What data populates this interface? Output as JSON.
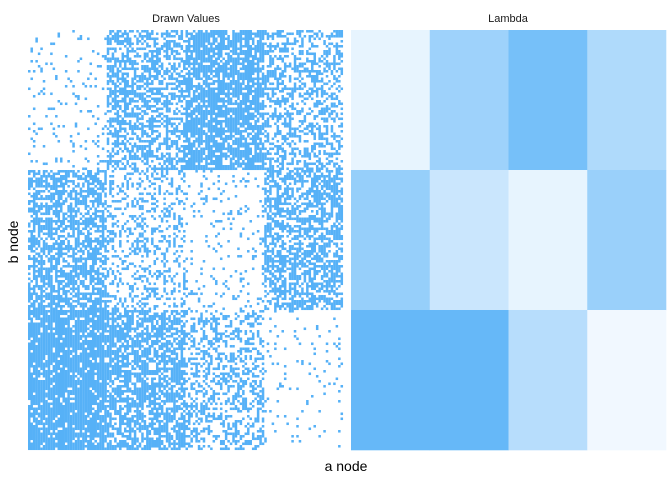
{
  "chart_data": [
    {
      "type": "heatmap",
      "title": "Drawn Values",
      "xlabel": "a node",
      "ylabel": "b node",
      "n_cols": 128,
      "n_rows": 168,
      "value_domain": [
        0,
        1
      ],
      "block_col_edges": [
        0,
        32,
        64,
        96,
        128
      ],
      "block_row_edges": [
        0,
        56,
        112,
        168
      ],
      "block_fill_probability": [
        [
          0.08,
          0.55,
          0.8,
          0.45
        ],
        [
          0.65,
          0.3,
          0.1,
          0.6
        ],
        [
          0.88,
          0.7,
          0.4,
          0.05
        ]
      ],
      "colors": {
        "one": "#56b1f7",
        "zero": "#ffffff"
      }
    },
    {
      "type": "heatmap",
      "title": "Lambda",
      "n_cols": 4,
      "n_rows": 3,
      "value_domain": [
        0,
        1
      ],
      "values": [
        [
          0.1,
          0.55,
          0.8,
          0.45
        ],
        [
          0.6,
          0.28,
          0.1,
          0.58
        ],
        [
          0.9,
          0.9,
          0.4,
          0.04
        ]
      ],
      "colors": {
        "low": "#f7fbff",
        "high": "#56b1f7"
      }
    }
  ]
}
